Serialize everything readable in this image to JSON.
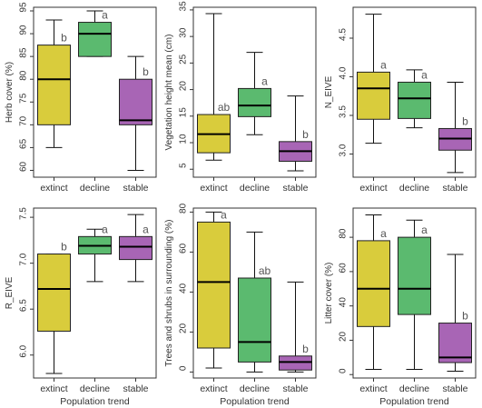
{
  "chart_data": [
    {
      "type": "boxplot",
      "ylabel": "Herb cover (%)",
      "xlabel": "",
      "categories": [
        "extinct",
        "decline",
        "stable"
      ],
      "ylim": [
        58.5,
        95.8
      ],
      "yticks": [
        60,
        65,
        70,
        75,
        80,
        85,
        90,
        95
      ],
      "colors": [
        "#d9cc3c",
        "#5bba6f",
        "#a865b5"
      ],
      "boxes": [
        {
          "min": 65,
          "q1": 70,
          "median": 80,
          "q3": 87.5,
          "max": 93,
          "letter": "b"
        },
        {
          "min": 85,
          "q1": 85,
          "median": 90,
          "q3": 92.5,
          "max": 95,
          "letter": "a"
        },
        {
          "min": 60,
          "q1": 70,
          "median": 71,
          "q3": 80,
          "max": 85,
          "letter": "b"
        }
      ]
    },
    {
      "type": "boxplot",
      "ylabel": "Vegetation height mean (cm)",
      "xlabel": "",
      "categories": [
        "extinct",
        "decline",
        "stable"
      ],
      "ylim": [
        3.5,
        35.5
      ],
      "yticks": [
        5,
        10,
        15,
        20,
        25,
        30,
        35
      ],
      "colors": [
        "#d9cc3c",
        "#5bba6f",
        "#a865b5"
      ],
      "boxes": [
        {
          "min": 6.7,
          "q1": 8.1,
          "median": 11.6,
          "q3": 15.3,
          "max": 34.3,
          "letter": "ab"
        },
        {
          "min": 11.5,
          "q1": 14.9,
          "median": 17,
          "q3": 20.2,
          "max": 27,
          "letter": "a"
        },
        {
          "min": 4.7,
          "q1": 6.5,
          "median": 8.4,
          "q3": 10.2,
          "max": 18.8,
          "letter": "b"
        }
      ]
    },
    {
      "type": "boxplot",
      "ylabel": "N_EIVE",
      "xlabel": "",
      "categories": [
        "extinct",
        "decline",
        "stable"
      ],
      "ylim": [
        2.7,
        4.9
      ],
      "yticks": [
        3.0,
        3.5,
        4.0,
        4.5
      ],
      "ytick_labels": [
        "3.0",
        "3.5",
        "4.0",
        "4.5"
      ],
      "colors": [
        "#d9cc3c",
        "#5bba6f",
        "#a865b5"
      ],
      "boxes": [
        {
          "min": 3.14,
          "q1": 3.45,
          "median": 3.85,
          "q3": 4.06,
          "max": 4.81,
          "letter": "a"
        },
        {
          "min": 3.34,
          "q1": 3.46,
          "median": 3.72,
          "q3": 3.93,
          "max": 4.09,
          "letter": "a"
        },
        {
          "min": 2.76,
          "q1": 3.05,
          "median": 3.2,
          "q3": 3.33,
          "max": 3.93,
          "letter": "b"
        }
      ]
    },
    {
      "type": "boxplot",
      "ylabel": "R_EIVE",
      "xlabel": "Population trend",
      "categories": [
        "extinct",
        "decline",
        "stable"
      ],
      "ylim": [
        5.75,
        7.6
      ],
      "yticks": [
        6.0,
        6.5,
        7.0,
        7.5
      ],
      "ytick_labels": [
        "6.0",
        "6.5",
        "7.0",
        "7.5"
      ],
      "colors": [
        "#d9cc3c",
        "#5bba6f",
        "#a865b5"
      ],
      "boxes": [
        {
          "min": 5.8,
          "q1": 6.26,
          "median": 6.72,
          "q3": 7.1,
          "max": 7.1,
          "letter": "b"
        },
        {
          "min": 6.8,
          "q1": 7.1,
          "median": 7.19,
          "q3": 7.29,
          "max": 7.37,
          "letter": "a"
        },
        {
          "min": 6.8,
          "q1": 7.04,
          "median": 7.18,
          "q3": 7.29,
          "max": 7.53,
          "letter": "a"
        }
      ]
    },
    {
      "type": "boxplot",
      "ylabel": "Trees and shrubs in surrounding (%)",
      "xlabel": "Population trend",
      "categories": [
        "extinct",
        "decline",
        "stable"
      ],
      "ylim": [
        -3,
        82
      ],
      "yticks": [
        0,
        20,
        40,
        60,
        80
      ],
      "colors": [
        "#d9cc3c",
        "#5bba6f",
        "#a865b5"
      ],
      "boxes": [
        {
          "min": 2,
          "q1": 12,
          "median": 45,
          "q3": 75,
          "max": 80,
          "letter": "a"
        },
        {
          "min": 0,
          "q1": 5,
          "median": 15,
          "q3": 47,
          "max": 70,
          "letter": "ab"
        },
        {
          "min": 0,
          "q1": 1,
          "median": 5,
          "q3": 8,
          "max": 45,
          "letter": "b"
        }
      ]
    },
    {
      "type": "boxplot",
      "ylabel": "Litter cover (%)",
      "xlabel": "Population trend",
      "categories": [
        "extinct",
        "decline",
        "stable"
      ],
      "ylim": [
        -2,
        97
      ],
      "yticks": [
        0,
        20,
        40,
        60,
        80
      ],
      "colors": [
        "#d9cc3c",
        "#5bba6f",
        "#a865b5"
      ],
      "boxes": [
        {
          "min": 3,
          "q1": 28,
          "median": 50,
          "q3": 78,
          "max": 93,
          "letter": "a"
        },
        {
          "min": 3,
          "q1": 35,
          "median": 50,
          "q3": 80,
          "max": 90,
          "letter": "a"
        },
        {
          "min": 2,
          "q1": 7,
          "median": 10,
          "q3": 30,
          "max": 70,
          "letter": "b"
        }
      ]
    }
  ]
}
